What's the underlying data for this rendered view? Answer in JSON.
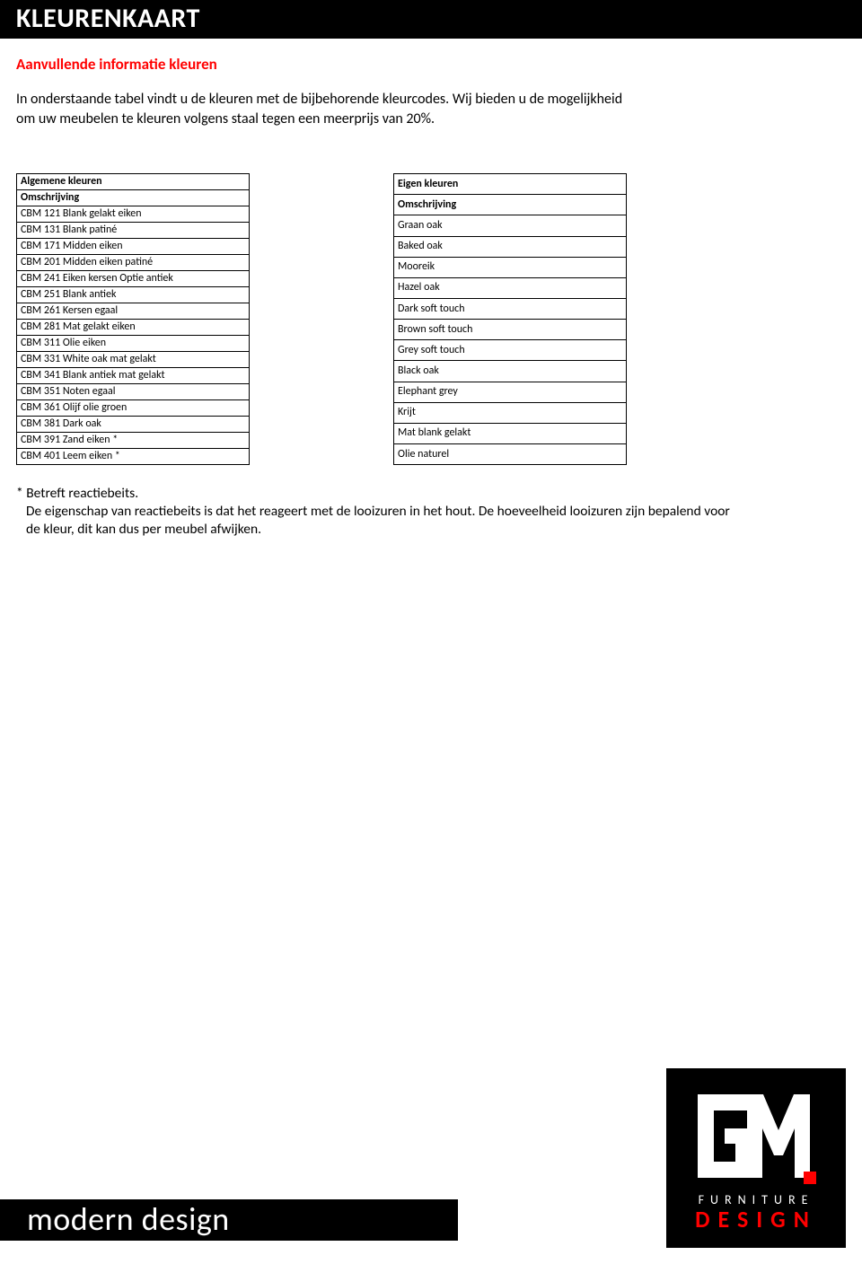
{
  "header": {
    "title": "KLEURENKAART"
  },
  "subtitle": "Aanvullende informatie kleuren",
  "intro_line1": "In onderstaande tabel vindt u de kleuren met de bijbehorende kleurcodes. Wij bieden u de mogelijkheid",
  "intro_line2": "om uw meubelen te kleuren volgens staal tegen een meerprijs  van 20%.",
  "table_left": {
    "header1": "Algemene kleuren",
    "header2": "Omschrijving",
    "rows": [
      "CBM 121 Blank gelakt eiken",
      "CBM 131 Blank patiné",
      "CBM 171 Midden eiken",
      "CBM 201 Midden eiken patiné",
      "CBM 241 Eiken kersen Optie antiek",
      "CBM 251 Blank antiek",
      "CBM 261 Kersen egaal",
      "CBM 281 Mat gelakt eiken",
      "CBM 311 Olie eiken",
      "CBM 331 White oak mat gelakt",
      "CBM 341 Blank antiek mat gelakt",
      "CBM 351 Noten egaal",
      "CBM 361 Olijf olie groen",
      "CBM 381 Dark oak",
      "CBM 391 Zand eiken *",
      "CBM 401 Leem eiken *"
    ]
  },
  "table_right": {
    "header1": "Eigen kleuren",
    "header2": "Omschrijving",
    "rows": [
      "Graan oak",
      "Baked oak",
      "Mooreik",
      "Hazel oak",
      "Dark soft touch",
      "Brown soft touch",
      "Grey soft touch",
      "Black oak",
      "Elephant grey",
      "Krijt",
      "Mat blank gelakt",
      "Olie naturel"
    ]
  },
  "footnote_line1": "* Betreft reactiebeits.",
  "footnote_line2": "De eigenschap van reactiebeits is dat het reageert met de looizuren in het hout. De hoeveelheid looizuren zijn bepalend voor",
  "footnote_line3": "de kleur, dit kan dus per meubel afwijken.",
  "footer": {
    "text": "modern design"
  },
  "logo": {
    "furniture": "FURNITURE",
    "design": "DESIGN"
  },
  "colors": {
    "header_bg": "#000000",
    "header_text": "#ffffff",
    "subtitle_text": "#ff0000",
    "body_text": "#000000",
    "table_border": "#000000",
    "footer_bg": "#000000",
    "footer_text": "#ffffff",
    "logo_bg": "#000000",
    "logo_gm": "#ffffff",
    "logo_furniture": "#ffffff",
    "logo_design": "#ff0000"
  }
}
